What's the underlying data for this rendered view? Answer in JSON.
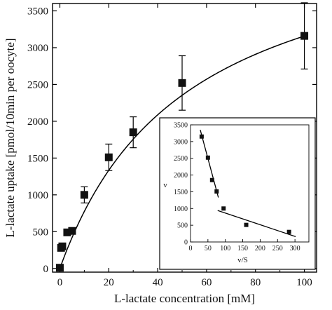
{
  "chart_data": [
    {
      "type": "scatter",
      "title": "",
      "xlabel": "L-lactate concentration [mM]",
      "ylabel": "L-lactate uptake [pmol/10min per oocyte]",
      "xlim": [
        -3,
        105
      ],
      "ylim": [
        -50,
        3600
      ],
      "x_ticks": [
        "0",
        "20",
        "40",
        "60",
        "80",
        "100"
      ],
      "y_ticks": [
        "0",
        "500",
        "1000",
        "1500",
        "2000",
        "2500",
        "3000",
        "3500"
      ],
      "series": [
        {
          "x": [
            0,
            0.5,
            1,
            3,
            5,
            10,
            20,
            30,
            50,
            100
          ],
          "y": [
            10,
            280,
            300,
            490,
            510,
            1000,
            1510,
            1850,
            2520,
            3160
          ],
          "error": [
            0,
            0,
            0,
            0,
            0,
            110,
            180,
            210,
            370,
            450
          ]
        }
      ],
      "fit": {
        "kind": "michaelis-menten",
        "vmax": 4800,
        "km": 52
      },
      "grid": false,
      "legend": "none"
    },
    {
      "type": "scatter",
      "title": "",
      "xlabel": "v/S",
      "ylabel": "v",
      "xlim": [
        0,
        340
      ],
      "ylim": [
        0,
        3500
      ],
      "x_ticks": [
        "0",
        "50",
        "100",
        "150",
        "200",
        "250",
        "300"
      ],
      "y_ticks": [
        "0",
        "500",
        "1000",
        "1500",
        "2000",
        "2500",
        "3000",
        "3500"
      ],
      "series": [
        {
          "x": [
            32,
            50,
            62,
            75,
            95,
            160,
            283
          ],
          "y": [
            3150,
            2520,
            1850,
            1510,
            1000,
            510,
            300
          ]
        }
      ],
      "fit_lines": [
        {
          "from": [
            28,
            3350
          ],
          "to": [
            80,
            1330
          ]
        },
        {
          "from": [
            78,
            940
          ],
          "to": [
            302,
            160
          ]
        }
      ],
      "grid": false,
      "legend": "none"
    }
  ]
}
